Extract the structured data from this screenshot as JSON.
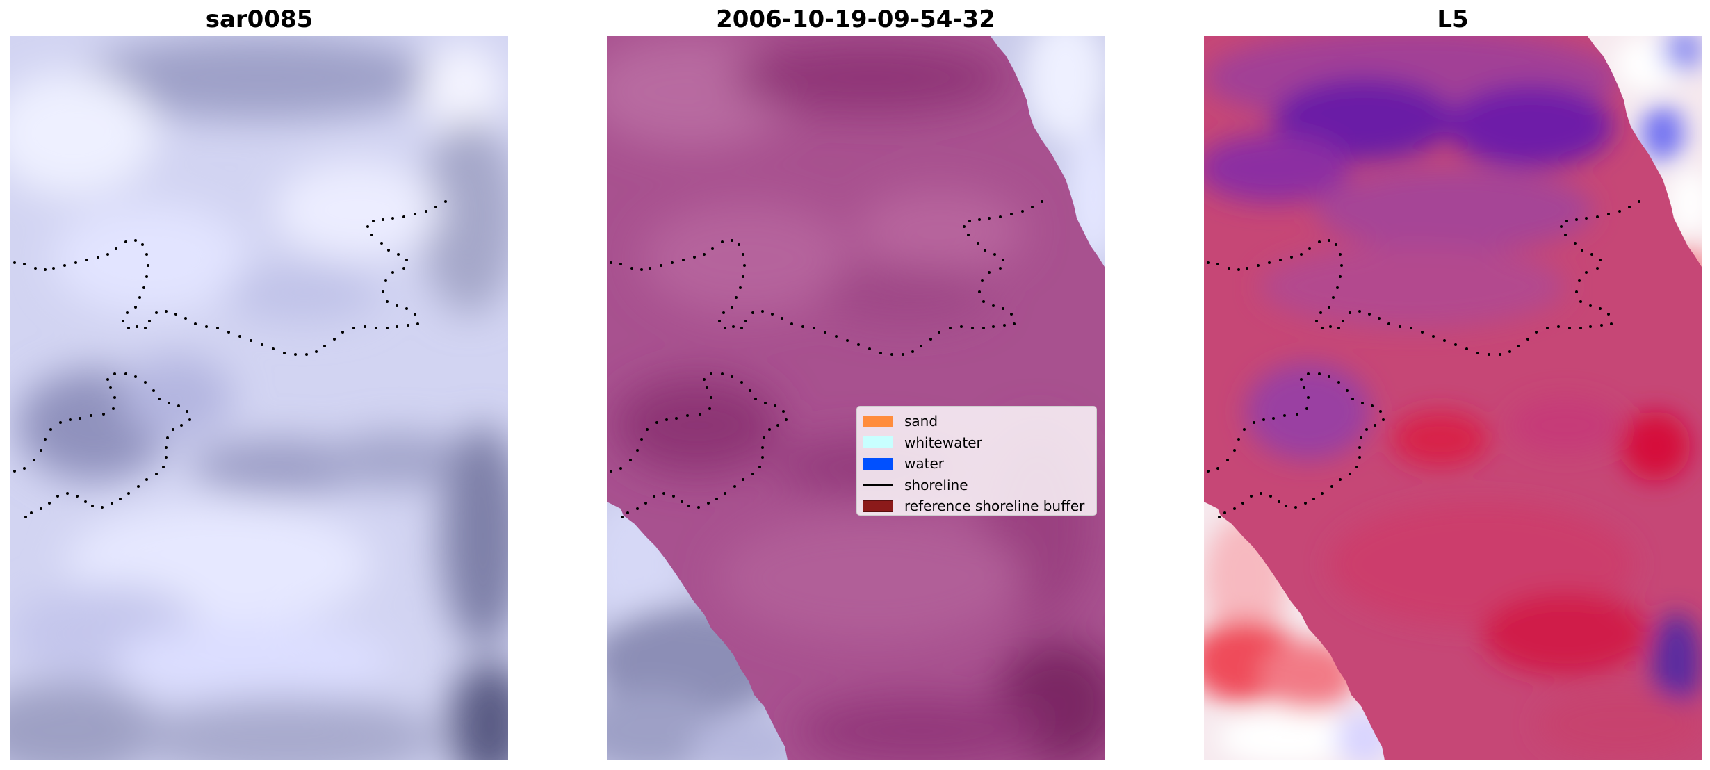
{
  "panels": [
    {
      "title": "sar0085"
    },
    {
      "title": "2006-10-19-09-54-32"
    },
    {
      "title": "L5"
    }
  ],
  "legend": {
    "items": [
      {
        "label": "sand",
        "color": "#ff8c3c",
        "kind": "patch"
      },
      {
        "label": "whitewater",
        "color": "#c8ffff",
        "kind": "patch"
      },
      {
        "label": "water",
        "color": "#0050ff",
        "kind": "patch"
      },
      {
        "label": "shoreline",
        "color": "#000000",
        "kind": "line"
      },
      {
        "label": "reference shoreline buffer",
        "color": "#8b1a1a",
        "kind": "patch"
      }
    ]
  },
  "colors": {
    "panel1_base": "#d4d6f2",
    "panel2_base": "#a9508f",
    "panel3_base": "#c83c6e",
    "shoreline_dots": "#000000"
  }
}
